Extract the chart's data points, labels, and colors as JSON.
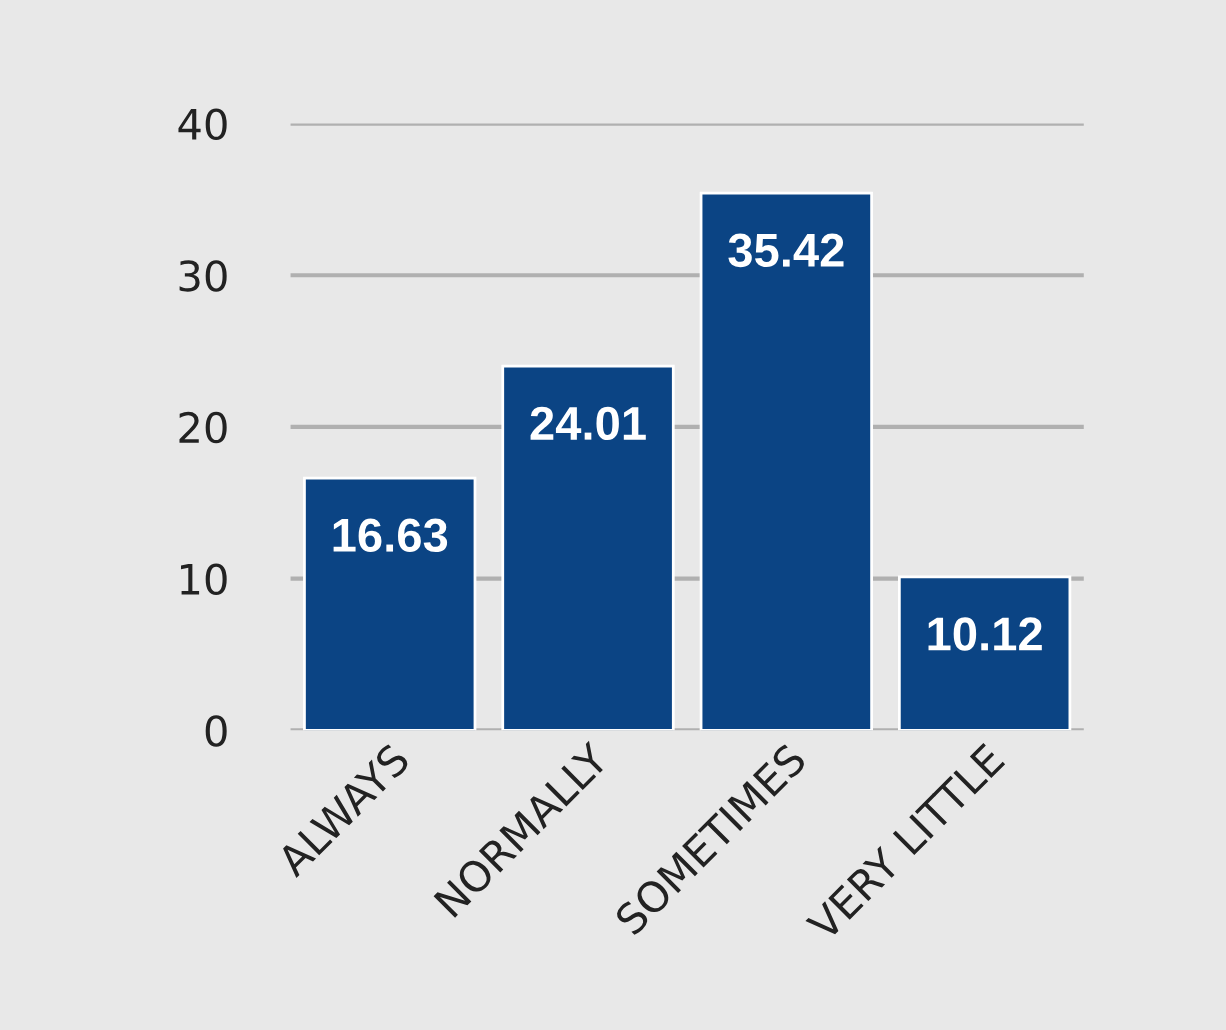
{
  "chart_data": {
    "type": "bar",
    "categories": [
      "ALWAYS",
      "NORMALLY",
      "SOMETIMES",
      "VERY LITTLE"
    ],
    "values": [
      16.63,
      24.01,
      35.42,
      10.12
    ],
    "color": "#0b4484",
    "ylim": [
      0,
      40
    ],
    "yticks": [
      0,
      10,
      20,
      30,
      40
    ],
    "grid": "y",
    "data_labels": true
  }
}
